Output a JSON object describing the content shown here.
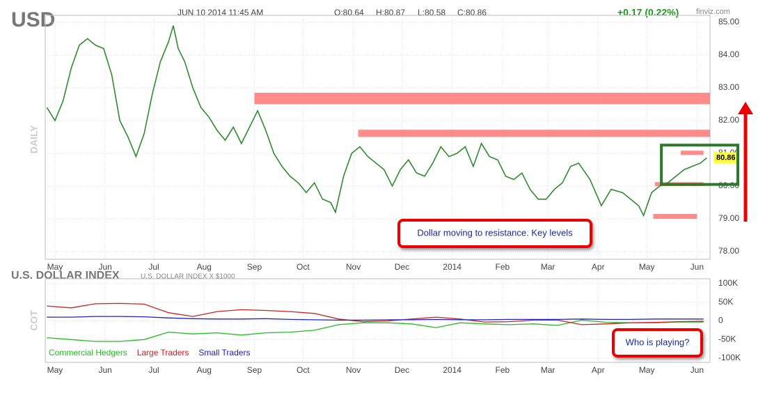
{
  "header": {
    "symbol": "USD",
    "timestamp": "JUN 10 2014 11:45 AM",
    "open": "O:80.64",
    "high": "H:80.87",
    "low": "L:80.58",
    "close": "C:80.86",
    "change": "+0.17 (0.22%)",
    "source": "finviz.com"
  },
  "chart_data": [
    {
      "type": "line",
      "y_label": "DAILY",
      "color": "#2e8b2e",
      "grid": true,
      "last": 80.86,
      "xlim": [
        -6,
        404
      ],
      "ylim": [
        78,
        85
      ],
      "xticks": [
        {
          "value": 0,
          "label": "May"
        },
        {
          "value": 31,
          "label": "Jun"
        },
        {
          "value": 61,
          "label": "Jul"
        },
        {
          "value": 92,
          "label": "Aug"
        },
        {
          "value": 123,
          "label": "Sep"
        },
        {
          "value": 153,
          "label": "Oct"
        },
        {
          "value": 184,
          "label": "Nov"
        },
        {
          "value": 214,
          "label": "Dec"
        },
        {
          "value": 245,
          "label": "2014"
        },
        {
          "value": 276,
          "label": "Feb"
        },
        {
          "value": 304,
          "label": "Mar"
        },
        {
          "value": 335,
          "label": "Apr"
        },
        {
          "value": 365,
          "label": "May"
        },
        {
          "value": 396,
          "label": "Jun"
        }
      ],
      "yticks": [
        {
          "value": 78,
          "label": "78.00"
        },
        {
          "value": 79,
          "label": "79.00"
        },
        {
          "value": 80,
          "label": "80.00"
        },
        {
          "value": 81,
          "label": "81.00"
        },
        {
          "value": 82,
          "label": "82.00"
        },
        {
          "value": 83,
          "label": "83.00"
        },
        {
          "value": 84,
          "label": "84.00"
        },
        {
          "value": 85,
          "label": "85.00"
        }
      ],
      "x": [
        -5,
        0,
        5,
        10,
        15,
        20,
        25,
        30,
        35,
        40,
        45,
        50,
        55,
        60,
        65,
        70,
        73,
        76,
        80,
        85,
        90,
        95,
        100,
        105,
        110,
        115,
        120,
        125,
        130,
        135,
        140,
        145,
        150,
        155,
        160,
        165,
        170,
        173,
        178,
        183,
        188,
        193,
        198,
        203,
        208,
        213,
        218,
        223,
        228,
        233,
        238,
        243,
        248,
        253,
        258,
        263,
        268,
        273,
        278,
        283,
        288,
        293,
        298,
        303,
        308,
        313,
        318,
        323,
        330,
        337,
        343,
        350,
        355,
        360,
        363,
        368,
        373,
        378,
        383,
        388,
        393,
        398,
        402
      ],
      "values": [
        82.4,
        82.0,
        82.6,
        83.6,
        84.3,
        84.5,
        84.3,
        84.2,
        83.4,
        82.0,
        81.5,
        80.9,
        81.6,
        82.8,
        83.8,
        84.4,
        84.9,
        84.2,
        83.8,
        83.0,
        82.4,
        82.1,
        81.7,
        81.4,
        81.8,
        81.3,
        81.8,
        82.3,
        81.7,
        81.0,
        80.6,
        80.3,
        80.1,
        79.8,
        80.1,
        79.6,
        79.5,
        79.2,
        80.3,
        81.0,
        81.2,
        80.9,
        80.7,
        80.5,
        80.0,
        80.5,
        80.8,
        80.4,
        80.3,
        80.7,
        81.2,
        80.9,
        81.0,
        81.2,
        80.6,
        81.3,
        80.9,
        80.8,
        80.3,
        80.2,
        80.4,
        79.9,
        79.6,
        79.6,
        79.9,
        80.1,
        80.6,
        80.7,
        80.2,
        79.4,
        79.9,
        79.8,
        79.6,
        79.4,
        79.1,
        79.8,
        80.0,
        80.1,
        80.3,
        80.5,
        80.6,
        80.7,
        80.86
      ],
      "zones": [
        {
          "from": 123,
          "to": 404,
          "low": 82.5,
          "high": 82.85
        },
        {
          "from": 187,
          "to": 404,
          "low": 81.5,
          "high": 81.72
        },
        {
          "from": 369,
          "to": 396,
          "low": 79.0,
          "high": 79.15
        },
        {
          "from": 370,
          "to": 400,
          "low": 80.0,
          "high": 80.12
        },
        {
          "from": 386,
          "to": 400,
          "low": 80.95,
          "high": 81.08
        }
      ],
      "highlight": {
        "from": 374,
        "low": 80.05,
        "high": 81.25
      },
      "annotation": "Dollar moving to resistance. Key levels"
    },
    {
      "type": "line",
      "title": "U.S. DOLLAR INDEX",
      "subtitle": "U.S. DOLLAR INDEX X $1000",
      "y_label": "COT",
      "xlim": [
        -6,
        404
      ],
      "ylim": [
        -100000,
        100000
      ],
      "yticks": [
        {
          "value": -100000,
          "label": "-100K"
        },
        {
          "value": -50000,
          "label": "-50K"
        },
        0,
        {
          "value": 50000,
          "label": "50K"
        },
        {
          "value": 100000,
          "label": "100K"
        }
      ],
      "x": [
        -5,
        10,
        25,
        40,
        55,
        70,
        85,
        100,
        115,
        130,
        145,
        160,
        175,
        190,
        205,
        220,
        235,
        250,
        265,
        280,
        295,
        310,
        325,
        340,
        355,
        370,
        385,
        400
      ],
      "series": [
        {
          "name": "Commercial Hedgers",
          "color": "#22bb22",
          "values": [
            -45000,
            -50000,
            -55000,
            -55000,
            -50000,
            -30000,
            -35000,
            -32000,
            -38000,
            -32000,
            -30000,
            -25000,
            -10000,
            -5000,
            -5000,
            -8000,
            -18000,
            -5000,
            -8000,
            -10000,
            -8000,
            -12000,
            2000,
            -4000,
            -5000,
            -5000,
            -3000,
            -3000
          ]
        },
        {
          "name": "Large Traders",
          "color": "#cc2222",
          "values": [
            40000,
            35000,
            46000,
            47000,
            45000,
            22000,
            12000,
            25000,
            30000,
            28000,
            25000,
            20000,
            5000,
            -2000,
            0,
            5000,
            10000,
            5000,
            -3000,
            -2000,
            2000,
            2000,
            -10000,
            -8000,
            -5000,
            -4000,
            -2000,
            -1000
          ]
        },
        {
          "name": "Small Traders",
          "color": "#2222bb",
          "values": [
            10000,
            10000,
            12000,
            12000,
            11000,
            8000,
            6000,
            5000,
            5000,
            6000,
            4000,
            3000,
            2000,
            2000,
            3000,
            3000,
            4000,
            3000,
            3000,
            4000,
            4000,
            4000,
            5000,
            4000,
            4000,
            5000,
            5000,
            5000
          ]
        }
      ],
      "annotation": "Who is playing?"
    }
  ]
}
